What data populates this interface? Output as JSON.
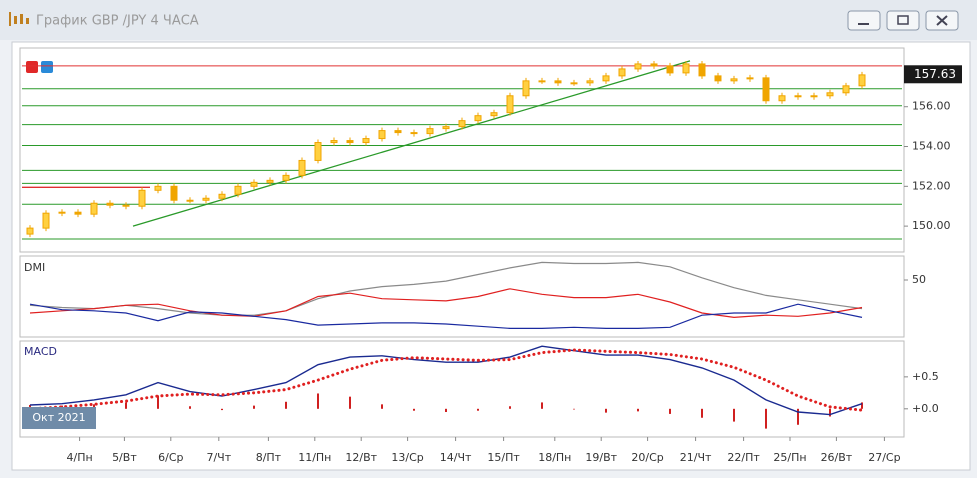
{
  "window": {
    "title": "График GBP /JPY  4 ЧАСА"
  },
  "chart_data": [
    {
      "type": "candlestick",
      "color": "#f0a500",
      "x": [
        0,
        1,
        2,
        3,
        4,
        5,
        6,
        7,
        8,
        9,
        10,
        11,
        12,
        13,
        14,
        15,
        16,
        17,
        18,
        19,
        20,
        21,
        22,
        23,
        24,
        25,
        26,
        27,
        28,
        29,
        30,
        31,
        32,
        33,
        34,
        35,
        36,
        37,
        38,
        39,
        40,
        41,
        42,
        43,
        44,
        45,
        46,
        47,
        48,
        49,
        50,
        51,
        52
      ],
      "open": [
        149.6,
        149.9,
        150.65,
        150.7,
        150.6,
        151.15,
        151.05,
        151.0,
        151.8,
        152.0,
        151.3,
        151.3,
        151.4,
        151.6,
        152.0,
        152.2,
        152.3,
        152.55,
        153.3,
        154.2,
        154.3,
        154.2,
        154.4,
        154.8,
        154.7,
        154.65,
        154.9,
        155.0,
        155.3,
        155.55,
        155.7,
        156.55,
        157.3,
        157.3,
        157.2,
        157.2,
        157.3,
        157.55,
        157.9,
        158.15,
        158.05,
        157.7,
        158.15,
        157.55,
        157.3,
        157.4,
        157.45,
        156.3,
        156.55,
        156.5,
        156.55,
        156.7,
        157.05
      ],
      "high": [
        150.05,
        150.8,
        150.85,
        150.85,
        151.3,
        151.3,
        151.2,
        151.95,
        152.15,
        152.15,
        151.45,
        151.55,
        151.75,
        152.15,
        152.35,
        152.45,
        152.7,
        153.45,
        154.35,
        154.45,
        154.45,
        154.55,
        154.95,
        154.95,
        154.85,
        155.05,
        155.15,
        155.45,
        155.7,
        155.85,
        156.7,
        157.45,
        157.45,
        157.45,
        157.35,
        157.45,
        157.7,
        158.05,
        158.3,
        158.3,
        158.2,
        158.3,
        158.3,
        157.7,
        157.55,
        157.6,
        157.6,
        156.7,
        156.7,
        156.7,
        156.85,
        157.2,
        157.75
      ],
      "low": [
        149.45,
        149.75,
        150.5,
        150.45,
        150.45,
        150.9,
        150.85,
        150.85,
        151.65,
        151.15,
        151.15,
        151.15,
        151.25,
        151.45,
        151.85,
        152.05,
        152.15,
        152.4,
        153.15,
        154.05,
        154.05,
        154.05,
        154.25,
        154.55,
        154.5,
        154.5,
        154.75,
        154.85,
        155.15,
        155.4,
        155.55,
        156.4,
        157.15,
        157.05,
        157.05,
        157.05,
        157.15,
        157.4,
        157.75,
        157.9,
        157.55,
        157.55,
        157.4,
        157.15,
        157.15,
        157.25,
        156.15,
        156.15,
        156.35,
        156.35,
        156.4,
        156.55,
        156.9
      ],
      "close": [
        149.9,
        150.65,
        150.7,
        150.6,
        151.15,
        151.05,
        151.0,
        151.8,
        152.0,
        151.3,
        151.3,
        151.4,
        151.6,
        152.0,
        152.2,
        152.3,
        152.55,
        153.3,
        154.2,
        154.3,
        154.2,
        154.4,
        154.8,
        154.7,
        154.65,
        154.9,
        155.0,
        155.3,
        155.55,
        155.7,
        156.55,
        157.3,
        157.3,
        157.2,
        157.2,
        157.3,
        157.55,
        157.9,
        158.15,
        158.05,
        157.7,
        158.15,
        157.55,
        157.3,
        157.4,
        157.45,
        156.3,
        156.55,
        156.5,
        156.55,
        156.7,
        157.05,
        157.6
      ],
      "xlim": [
        -0.5,
        54.5
      ],
      "ylim": [
        148.8,
        158.85
      ],
      "yticks": [
        {
          "value": 150,
          "label": "150.00"
        },
        {
          "value": 152,
          "label": "152.00"
        },
        {
          "value": 154,
          "label": "154.00"
        },
        {
          "value": 156,
          "label": "156.00"
        }
      ],
      "last_price": 157.63,
      "hlines": [
        {
          "value": 158.05,
          "color": "#e03030"
        },
        {
          "value": 156.9,
          "color": "#2a9a2a"
        },
        {
          "value": 156.05,
          "color": "#2a9a2a"
        },
        {
          "value": 155.1,
          "color": "#2a9a2a"
        },
        {
          "value": 154.05,
          "color": "#2a9a2a"
        },
        {
          "value": 152.8,
          "color": "#2a9a2a"
        },
        {
          "value": 152.15,
          "color": "#2a9a2a"
        },
        {
          "value": 151.1,
          "color": "#2a9a2a"
        },
        {
          "value": 149.35,
          "color": "#2a9a2a"
        }
      ],
      "segments": [
        {
          "x": [
            -0.5,
            7.5
          ],
          "y": [
            151.95,
            151.95
          ],
          "color": "#e03030"
        },
        {
          "x": [
            6.44,
            41.25
          ],
          "y": [
            150.0,
            158.3
          ],
          "color": "#2a9a2a"
        }
      ]
    },
    {
      "type": "line",
      "title": "DMI",
      "xlim": [
        -0.5,
        54.5
      ],
      "ylim": [
        0,
        70
      ],
      "yticks": [
        50
      ],
      "x": [
        0,
        2,
        4,
        6,
        8,
        10,
        12,
        14,
        16,
        18,
        20,
        22,
        24,
        26,
        28,
        30,
        32,
        34,
        36,
        38,
        40,
        42,
        44,
        46,
        48,
        50,
        52
      ],
      "series": [
        {
          "color": "#8a8a8a",
          "values": [
            27,
            25,
            24,
            27,
            24,
            20,
            18,
            18,
            22,
            33,
            40,
            44,
            46,
            49,
            55,
            61,
            66,
            65,
            65,
            66,
            62,
            52,
            43,
            36,
            32,
            28,
            24
          ]
        },
        {
          "color": "#e02020",
          "values": [
            20,
            22,
            24,
            27,
            28,
            22,
            18,
            17,
            22,
            35,
            38,
            33,
            32,
            31,
            35,
            42,
            37,
            34,
            34,
            37,
            30,
            20,
            16,
            18,
            17,
            20,
            25
          ]
        },
        {
          "color": "#1a2aa0",
          "values": [
            28,
            23,
            22,
            20,
            13,
            21,
            20,
            17,
            14,
            9,
            10,
            11,
            11,
            10,
            8,
            6,
            6,
            7,
            6,
            6,
            7,
            18,
            20,
            20,
            28,
            22,
            16
          ]
        }
      ]
    },
    {
      "type": "macd",
      "title": "MACD",
      "xlim": [
        -0.5,
        54.5
      ],
      "ylim": [
        -0.41,
        1.03
      ],
      "yticks": [
        {
          "value": 0.5,
          "label": "+0.5"
        },
        {
          "value": 0,
          "label": "+0.0"
        }
      ],
      "x": [
        0,
        2,
        4,
        6,
        8,
        10,
        12,
        14,
        16,
        18,
        20,
        22,
        24,
        26,
        28,
        30,
        32,
        34,
        36,
        38,
        40,
        42,
        44,
        46,
        48,
        50,
        52
      ],
      "macd": {
        "color": "#1a2a90",
        "values": [
          0.06,
          0.08,
          0.14,
          0.22,
          0.41,
          0.27,
          0.2,
          0.3,
          0.41,
          0.69,
          0.81,
          0.83,
          0.77,
          0.73,
          0.73,
          0.81,
          0.98,
          0.91,
          0.84,
          0.84,
          0.77,
          0.64,
          0.45,
          0.14,
          -0.05,
          -0.09,
          0.08
        ]
      },
      "signal": {
        "color": "#e02020",
        "values": [
          0.0,
          0.03,
          0.07,
          0.12,
          0.2,
          0.23,
          0.22,
          0.25,
          0.3,
          0.45,
          0.62,
          0.76,
          0.8,
          0.78,
          0.76,
          0.77,
          0.88,
          0.92,
          0.9,
          0.88,
          0.85,
          0.78,
          0.65,
          0.45,
          0.2,
          0.03,
          -0.02
        ]
      },
      "histogram": {
        "color": "#d02020",
        "values": [
          0.06,
          0.05,
          0.07,
          0.1,
          0.21,
          0.04,
          -0.02,
          0.05,
          0.11,
          0.24,
          0.19,
          0.07,
          -0.03,
          -0.05,
          -0.03,
          0.04,
          0.1,
          -0.01,
          -0.06,
          -0.04,
          -0.08,
          -0.14,
          -0.2,
          -0.31,
          -0.25,
          -0.12,
          0.1
        ]
      },
      "period_label": "Окт 2021",
      "xticks": [
        {
          "value": 3.1,
          "label": "4/Пн"
        },
        {
          "value": 5.9,
          "label": "5/Вт"
        },
        {
          "value": 8.8,
          "label": "6/Ср"
        },
        {
          "value": 11.8,
          "label": "7/Чт"
        },
        {
          "value": 14.9,
          "label": "8/Пт"
        },
        {
          "value": 17.8,
          "label": "11/Пн"
        },
        {
          "value": 20.7,
          "label": "12/Вт"
        },
        {
          "value": 23.6,
          "label": "13/Ср"
        },
        {
          "value": 26.6,
          "label": "14/Чт"
        },
        {
          "value": 29.6,
          "label": "15/Пт"
        },
        {
          "value": 32.8,
          "label": "18/Пн"
        },
        {
          "value": 35.7,
          "label": "19/Вт"
        },
        {
          "value": 38.6,
          "label": "20/Ср"
        },
        {
          "value": 41.6,
          "label": "21/Чт"
        },
        {
          "value": 44.6,
          "label": "22/Пт"
        },
        {
          "value": 47.5,
          "label": "25/Пн"
        },
        {
          "value": 50.4,
          "label": "26/Вт"
        },
        {
          "value": 53.4,
          "label": "27/Ср"
        }
      ]
    }
  ]
}
